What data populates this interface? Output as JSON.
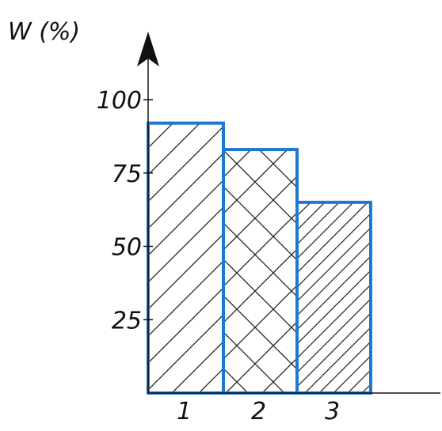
{
  "chart_data": {
    "type": "bar",
    "title": "",
    "xlabel": "",
    "ylabel": "W (%)",
    "categories": [
      "1",
      "2",
      "3"
    ],
    "values": [
      92,
      83,
      65
    ],
    "ylim": [
      0,
      100
    ],
    "yticks": [
      25,
      50,
      75,
      100
    ],
    "grid": false,
    "hatch": [
      "diagonal",
      "crosshatch",
      "dense-diagonal"
    ],
    "colors": {
      "bar_edge": "#1f77d4",
      "axis": "#111111",
      "hatch": "#222222"
    }
  }
}
